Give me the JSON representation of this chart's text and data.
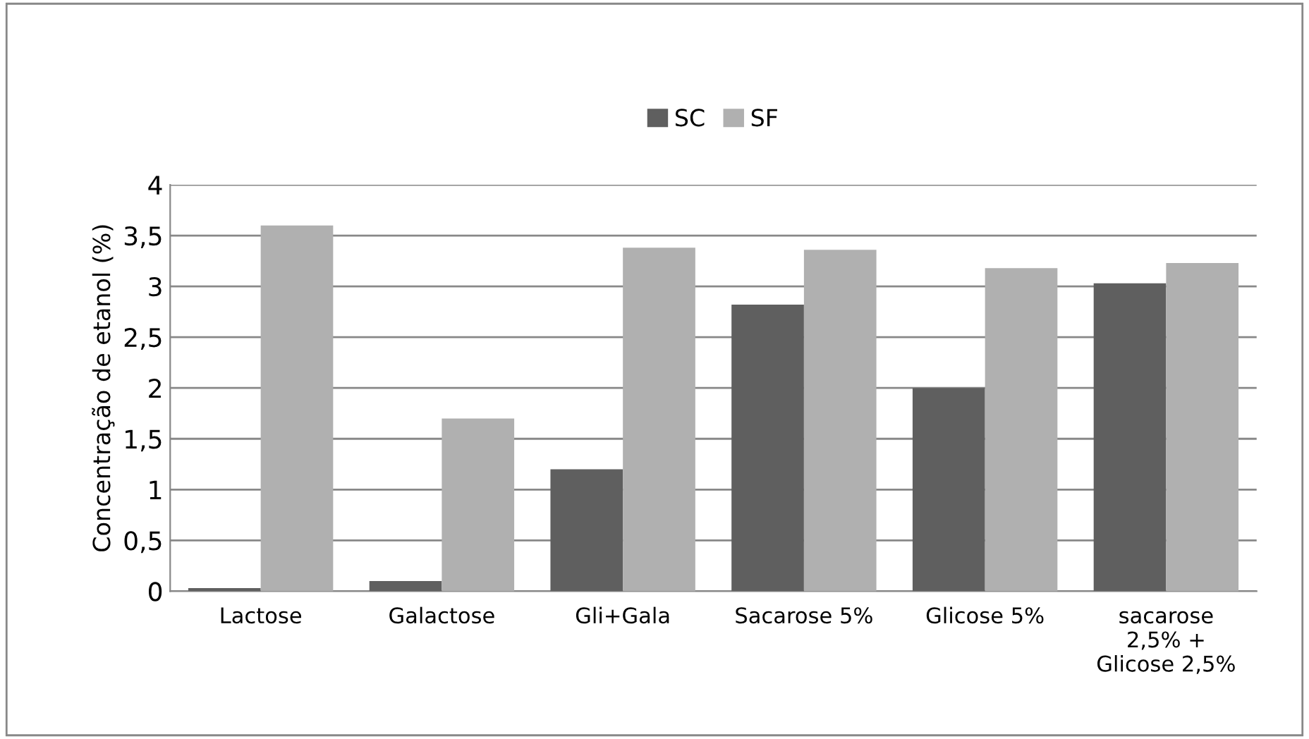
{
  "chart_data": {
    "type": "bar",
    "ylabel": "Concentração de etanol (%)",
    "categories": [
      "Lactose",
      "Galactose",
      "Gli+Gala",
      "Sacarose 5%",
      "Glicose 5%",
      "sacarose\n2,5% +\nGlicose 2,5%"
    ],
    "series": [
      {
        "name": "SC",
        "color": "#5f5f5f",
        "values": [
          0.03,
          0.1,
          1.2,
          2.82,
          2.0,
          3.03
        ]
      },
      {
        "name": "SF",
        "color": "#b0b0b0",
        "values": [
          3.6,
          1.7,
          3.38,
          3.36,
          3.18,
          3.23
        ]
      }
    ],
    "ylim": [
      0,
      4
    ],
    "yticks": [
      0,
      {
        "value": 0.5,
        "label": "0,5"
      },
      1,
      {
        "value": 1.5,
        "label": "1,5"
      },
      2,
      {
        "value": 2.5,
        "label": "2,5"
      },
      3,
      {
        "value": 3.5,
        "label": "3,5"
      },
      4
    ],
    "grid": "y",
    "legend": "top"
  }
}
